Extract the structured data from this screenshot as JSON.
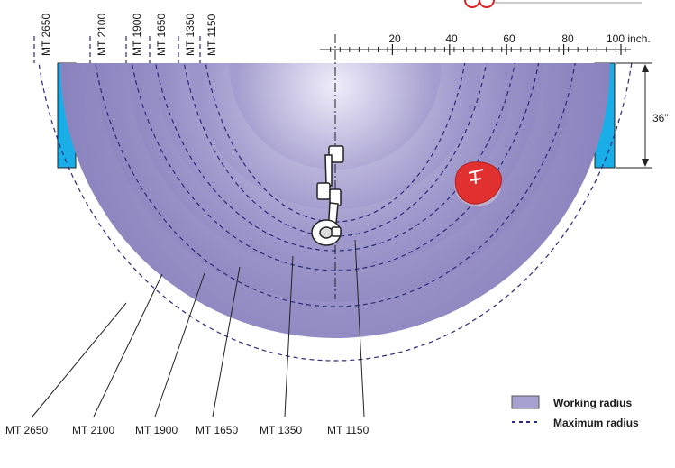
{
  "scale": {
    "ticks": [
      "20",
      "40",
      "60",
      "80",
      "100 inch."
    ],
    "height_label": "36”"
  },
  "models": [
    {
      "name": "MT 1150",
      "working": 1.0,
      "maximum": 1.0
    },
    {
      "name": "MT 1350",
      "working": 1.0,
      "maximum": 1.0
    },
    {
      "name": "MT 1650",
      "working": 1.0,
      "maximum": 1.0
    },
    {
      "name": "MT 1900",
      "working": 1.0,
      "maximum": 1.0
    },
    {
      "name": "MT 2100",
      "working": 1.0,
      "maximum": 1.0
    },
    {
      "name": "MT 2650",
      "working": 1.0,
      "maximum": 1.0
    }
  ],
  "top_labels": [
    "MT 2650",
    "MT 2100",
    "MT 1900",
    "MT 1650",
    "MT 1350",
    "MT 1150"
  ],
  "bottom_labels": [
    "MT 2650",
    "MT 2100",
    "MT 1900",
    "MT 1650",
    "MT 1350",
    "MT 1150"
  ],
  "legend": {
    "working": "Working radius",
    "maximum": "Maximum radius"
  },
  "colors": {
    "disc_light": "#e6e4f2",
    "disc_dark": "#8a82bc",
    "table": "#1aaee8",
    "dashed": "#2a2a7a",
    "pointer": "#e03030"
  }
}
